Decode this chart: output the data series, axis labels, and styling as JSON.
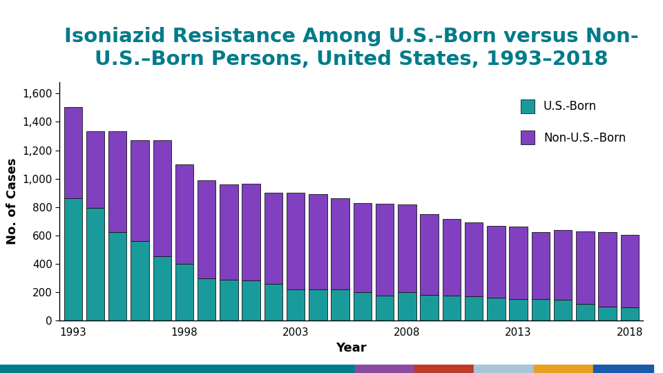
{
  "title_line1": "Isoniazid Resistance Among U.S.-Born versus Non-",
  "title_line2": "U.S.–Born Persons, United States, 1993–2018",
  "xlabel": "Year",
  "ylabel": "No. of Cases",
  "years": [
    1993,
    1994,
    1995,
    1996,
    1997,
    1998,
    1999,
    2000,
    2001,
    2002,
    2003,
    2004,
    2005,
    2006,
    2007,
    2008,
    2009,
    2010,
    2011,
    2012,
    2013,
    2014,
    2015,
    2016,
    2017,
    2018
  ],
  "us_born": [
    860,
    795,
    625,
    560,
    455,
    400,
    300,
    290,
    285,
    260,
    220,
    220,
    220,
    200,
    175,
    200,
    180,
    175,
    170,
    160,
    155,
    155,
    150,
    120,
    100,
    95
  ],
  "non_us_born": [
    645,
    540,
    710,
    710,
    815,
    700,
    690,
    670,
    680,
    640,
    680,
    670,
    640,
    630,
    650,
    620,
    570,
    540,
    520,
    510,
    510,
    470,
    490,
    510,
    525,
    510
  ],
  "color_us_born": "#1A9B9B",
  "color_non_us_born": "#8040C0",
  "title_color": "#007B8A",
  "title_fontsize": 21,
  "axis_label_fontsize": 13,
  "tick_fontsize": 11,
  "legend_fontsize": 12,
  "yticks": [
    0,
    200,
    400,
    600,
    800,
    1000,
    1200,
    1400,
    1600
  ],
  "xtick_labels": [
    "1993",
    "",
    "",
    "",
    "",
    "1998",
    "",
    "",
    "",
    "",
    "2003",
    "",
    "",
    "",
    "",
    "2008",
    "",
    "",
    "",
    "",
    "2013",
    "",
    "",
    "",
    "",
    "2018"
  ],
  "ylim": [
    0,
    1680
  ],
  "background_color": "#ffffff",
  "bar_edge_color": "#111111",
  "bar_linewidth": 0.6,
  "stripe_colors": [
    "#007B8A",
    "#8B4BA0",
    "#C0392B",
    "#A8C4D8",
    "#E8A020",
    "#1A5AAA"
  ],
  "stripe_fractions": [
    0.535,
    0.09,
    0.09,
    0.09,
    0.09,
    0.09
  ]
}
